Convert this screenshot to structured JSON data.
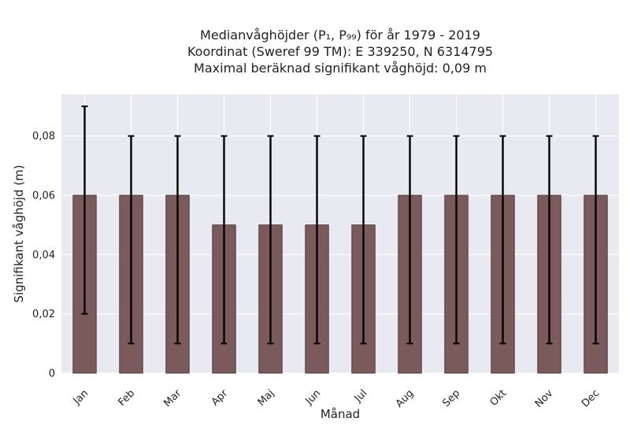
{
  "chart_data": {
    "type": "bar",
    "title_lines": [
      "Medianvåghöjder (P₁, P₉₉) för år 1979 - 2019",
      "Koordinat (Sweref 99 TM): E 339250, N 6314795",
      "Maximal beräknad signifikant våghöjd: 0,09 m"
    ],
    "xlabel": "Månad",
    "ylabel": "Signifikant våghöjd (m)",
    "categories": [
      "Jan",
      "Feb",
      "Mar",
      "Apr",
      "Maj",
      "Jun",
      "Jul",
      "Aug",
      "Sep",
      "Okt",
      "Nov",
      "Dec"
    ],
    "values": [
      0.06,
      0.06,
      0.06,
      0.05,
      0.05,
      0.05,
      0.05,
      0.06,
      0.06,
      0.06,
      0.06,
      0.06
    ],
    "error_low": [
      0.02,
      0.01,
      0.01,
      0.01,
      0.01,
      0.01,
      0.01,
      0.01,
      0.01,
      0.01,
      0.01,
      0.01
    ],
    "error_high": [
      0.09,
      0.08,
      0.08,
      0.08,
      0.08,
      0.08,
      0.08,
      0.08,
      0.08,
      0.08,
      0.08,
      0.08
    ],
    "ylim": [
      0,
      0.094
    ],
    "yticks": [
      0,
      0.02,
      0.04,
      0.06,
      0.08
    ],
    "ytick_labels": [
      "0",
      "0,02",
      "0,04",
      "0,06",
      "0,08"
    ],
    "grid": true,
    "colors": {
      "bar": "#7a5a5a",
      "bar_edge": "#3c2a2a",
      "error": "#000000",
      "plot_bg": "#e9e9f1",
      "grid": "#ffffff"
    }
  }
}
